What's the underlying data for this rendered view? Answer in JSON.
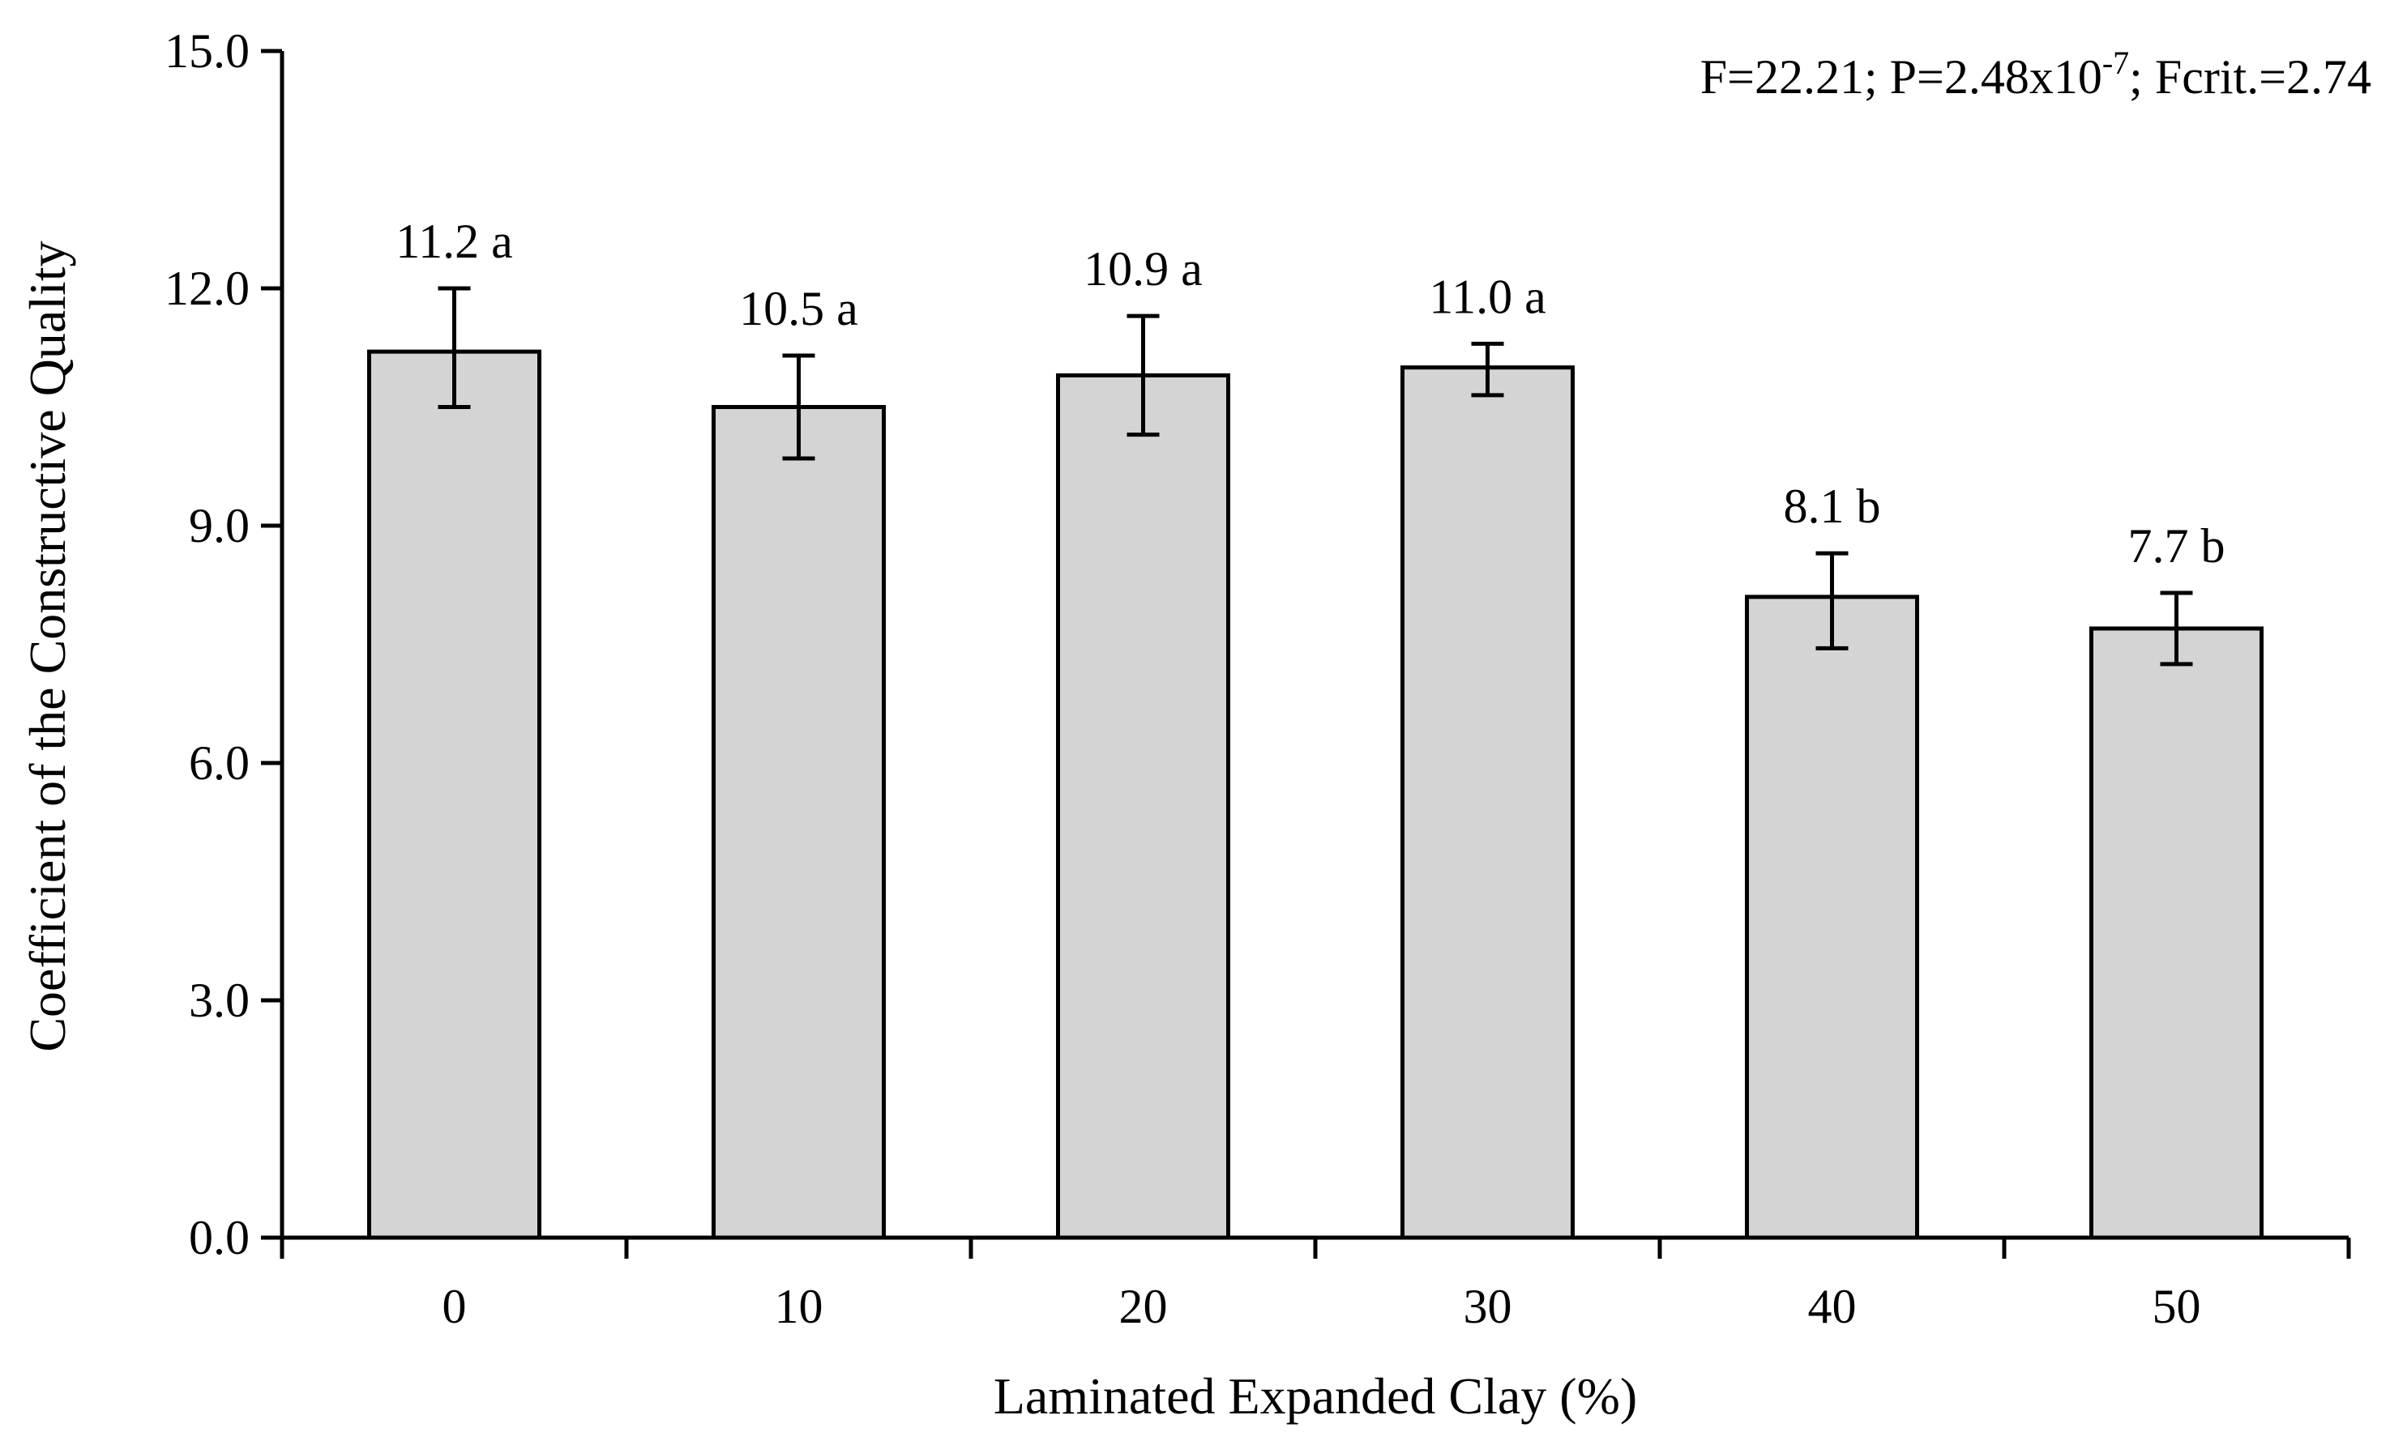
{
  "chart_data": {
    "type": "bar",
    "xlabel": "Laminated Expanded Clay (%)",
    "ylabel": "Coefficient of the Constructive Quality",
    "categories": [
      "0",
      "10",
      "20",
      "30",
      "40",
      "50"
    ],
    "values": [
      11.2,
      10.5,
      10.9,
      11.0,
      8.1,
      7.7
    ],
    "error_low": [
      10.5,
      9.85,
      10.15,
      10.65,
      7.45,
      7.25
    ],
    "error_high": [
      12.0,
      11.15,
      11.65,
      11.3,
      8.65,
      8.15
    ],
    "data_labels": [
      "11.2 a",
      "10.5 a",
      "10.9 a",
      "11.0 a",
      "8.1 b",
      "7.7 b"
    ],
    "ylim": [
      0,
      15
    ],
    "yticks": [
      "0.0",
      "3.0",
      "6.0",
      "9.0",
      "12.0",
      "15.0"
    ],
    "grid": false,
    "annotation": {
      "prefix": "F=22.21; P=2.48x10",
      "superscript": "-7",
      "suffix": "; Fcrit.=2.74"
    },
    "colors": {
      "bar_fill": "#d4d4d4",
      "stroke": "#000000"
    }
  }
}
